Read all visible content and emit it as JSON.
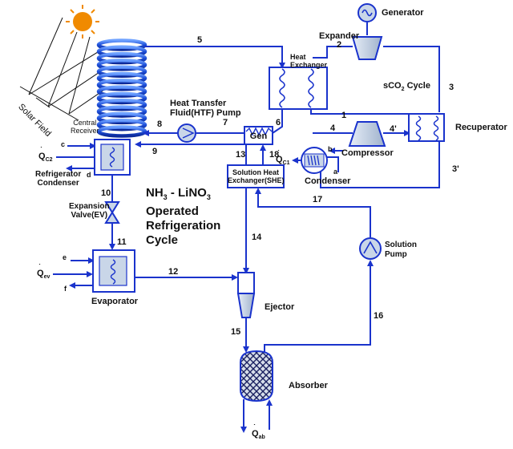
{
  "components": {
    "generator": "Generator",
    "expander": "Expander",
    "heat_exchanger": "Heat\nExchanger",
    "sco2_cycle_prefix": "sCO",
    "sco2_cycle_sub": "2",
    "sco2_cycle_suffix": " Cycle",
    "recuperator": "Recuperator",
    "compressor": "Compressor",
    "condenser": "Condenser",
    "htf_pump": "Heat Transfer\nFluid(HTF) Pump",
    "gen": "Gen",
    "she": "Solution Heat\nExchanger(SHE)",
    "refrigerator_condenser": "Refrigerator\nCondenser",
    "expansion_valve": "Expansion\nValve(EV)",
    "evaporator": "Evaporator",
    "ejector": "Ejector",
    "absorber": "Absorber",
    "solution_pump": "Solution\nPump",
    "central_receiver": "Central\nReceiver",
    "solar_field": "Solar Field"
  },
  "cycle_title": {
    "line1_a": "NH",
    "line1_sub1": "3",
    "line1_b": " - LiNO",
    "line1_sub2": "3",
    "line2": "Operated",
    "line3": "Refrigeration",
    "line4": "Cycle"
  },
  "streams": [
    "1",
    "2",
    "3",
    "3'",
    "4",
    "4'",
    "5",
    "6",
    "7",
    "8",
    "9",
    "10",
    "11",
    "12",
    "13",
    "14",
    "15",
    "16",
    "17",
    "18"
  ],
  "ports": {
    "a": "a",
    "b": "b",
    "c": "c",
    "d": "d",
    "e": "e",
    "f": "f"
  },
  "heat_flows": {
    "q_c1": "Q",
    "q_c1_sub": "C1",
    "q_c2": "Q",
    "q_c2_sub": "C2",
    "q_ev": "Q",
    "q_ev_sub": "ev",
    "q_ab": "Q",
    "q_ab_sub": "ab"
  },
  "colors": {
    "line": "#1a33cc",
    "sun": "#f08a00",
    "component": "#c9d6e8",
    "receiver": "#2f63e0"
  }
}
